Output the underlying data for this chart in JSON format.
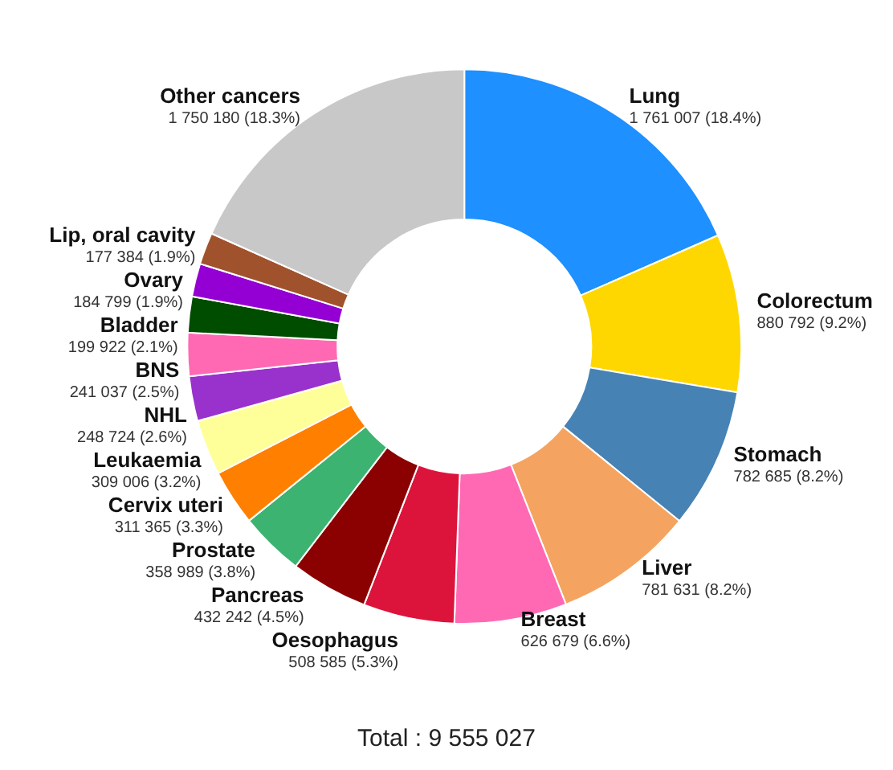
{
  "chart_data": {
    "type": "donut",
    "categories": [
      "Lung",
      "Colorectum",
      "Stomach",
      "Liver",
      "Breast",
      "Oesophagus",
      "Pancreas",
      "Prostate",
      "Cervix uteri",
      "Leukaemia",
      "NHL",
      "BNS",
      "Bladder",
      "Ovary",
      "Lip, oral cavity",
      "Other cancers"
    ],
    "values": [
      1761007,
      880792,
      782685,
      781631,
      626679,
      508585,
      432242,
      358989,
      311365,
      309006,
      248724,
      241037,
      199922,
      184799,
      177384,
      1750180
    ],
    "value_labels": [
      "1 761 007 (18.4%)",
      "880 792 (9.2%)",
      "782 685 (8.2%)",
      "781 631 (8.2%)",
      "626 679 (6.6%)",
      "508 585 (5.3%)",
      "432 242 (4.5%)",
      "358 989 (3.8%)",
      "311 365 (3.3%)",
      "309 006 (3.2%)",
      "248 724 (2.6%)",
      "241 037 (2.5%)",
      "199 922 (2.1%)",
      "184 799 (1.9%)",
      "177 384 (1.9%)",
      "1 750 180 (18.3%)"
    ],
    "colors": [
      "#1e90ff",
      "#ffd700",
      "#4682b4",
      "#f4a460",
      "#ff69b4",
      "#dc143c",
      "#8b0000",
      "#3cb371",
      "#ff7f00",
      "#ffff99",
      "#9932cc",
      "#ff69b4",
      "#004d00",
      "#9400d3",
      "#a0522d",
      "#c8c8c8"
    ],
    "annotations": [
      "Total : 9 555 027"
    ],
    "legend": false
  }
}
